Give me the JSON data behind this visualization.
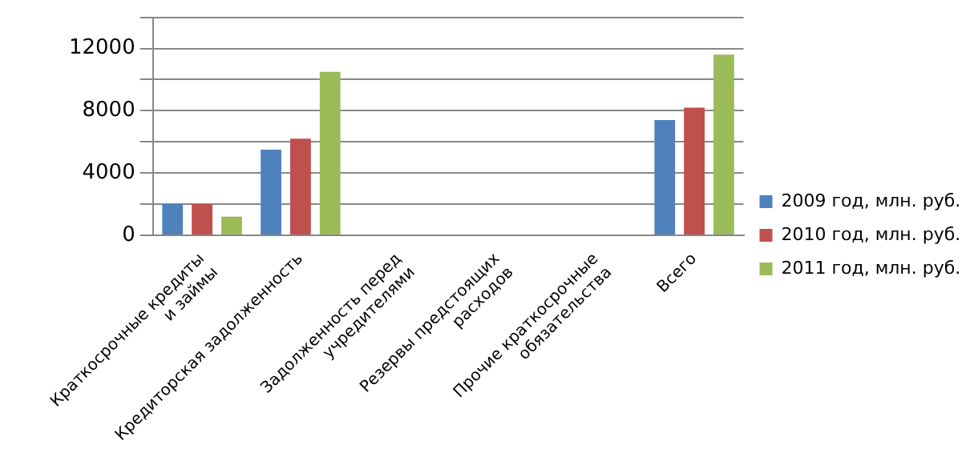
{
  "chart_data": {
    "type": "bar",
    "categories": [
      "Краткосрочные кредиты и займы",
      "Кредиторская задолженность",
      "Задолженность перед учредителями",
      "Резервы предстоящих расходов",
      "Прочие краткосрочные обязательства",
      "Всего"
    ],
    "series": [
      {
        "name": "2009 год, млн. руб.",
        "color": "#4f81bd",
        "values": [
          2000,
          5500,
          0,
          0,
          0,
          7400
        ]
      },
      {
        "name": "2010 год, млн. руб.",
        "color": "#c0504d",
        "values": [
          2000,
          6200,
          0,
          0,
          0,
          8200
        ]
      },
      {
        "name": "2011 год, млн. руб.",
        "color": "#9bbb59",
        "values": [
          1200,
          10500,
          0,
          0,
          0,
          11600
        ]
      }
    ],
    "ylim": [
      0,
      14000
    ],
    "yticks": [
      0,
      {
        "value": 2000,
        "label": null
      },
      4000,
      {
        "value": 6000,
        "label": null
      },
      8000,
      {
        "value": 10000,
        "label": null
      },
      12000,
      {
        "value": 14000,
        "label": null
      }
    ],
    "grid": "y",
    "legend": "right"
  }
}
